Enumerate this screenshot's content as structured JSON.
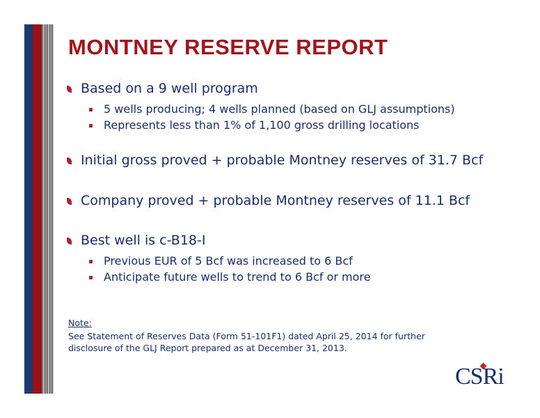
{
  "title": "MONTNEY RESERVE REPORT",
  "bullets": [
    {
      "text": "Based on a 9 well program",
      "subs": [
        "5 wells producing; 4 wells planned (based on GLJ assumptions)",
        "Represents less than 1% of 1,100 gross drilling locations"
      ]
    },
    {
      "text": "Initial gross proved + probable Montney reserves of 31.7 Bcf",
      "subs": []
    },
    {
      "text": "Company proved + probable Montney reserves of 11.1 Bcf",
      "subs": []
    },
    {
      "text": "Best well is c-B18-I",
      "subs": [
        "Previous EUR of 5 Bcf was increased to 6 Bcf",
        "Anticipate future wells to trend to 6 Bcf or more"
      ]
    }
  ],
  "note": {
    "label": "Note:",
    "lines": [
      "See Statement of Reserves Data (Form 51-101F1) dated April 25, 2014 for further",
      "disclosure of the GLJ Report prepared as at December 31, 2013."
    ]
  },
  "logo": "CSRi"
}
